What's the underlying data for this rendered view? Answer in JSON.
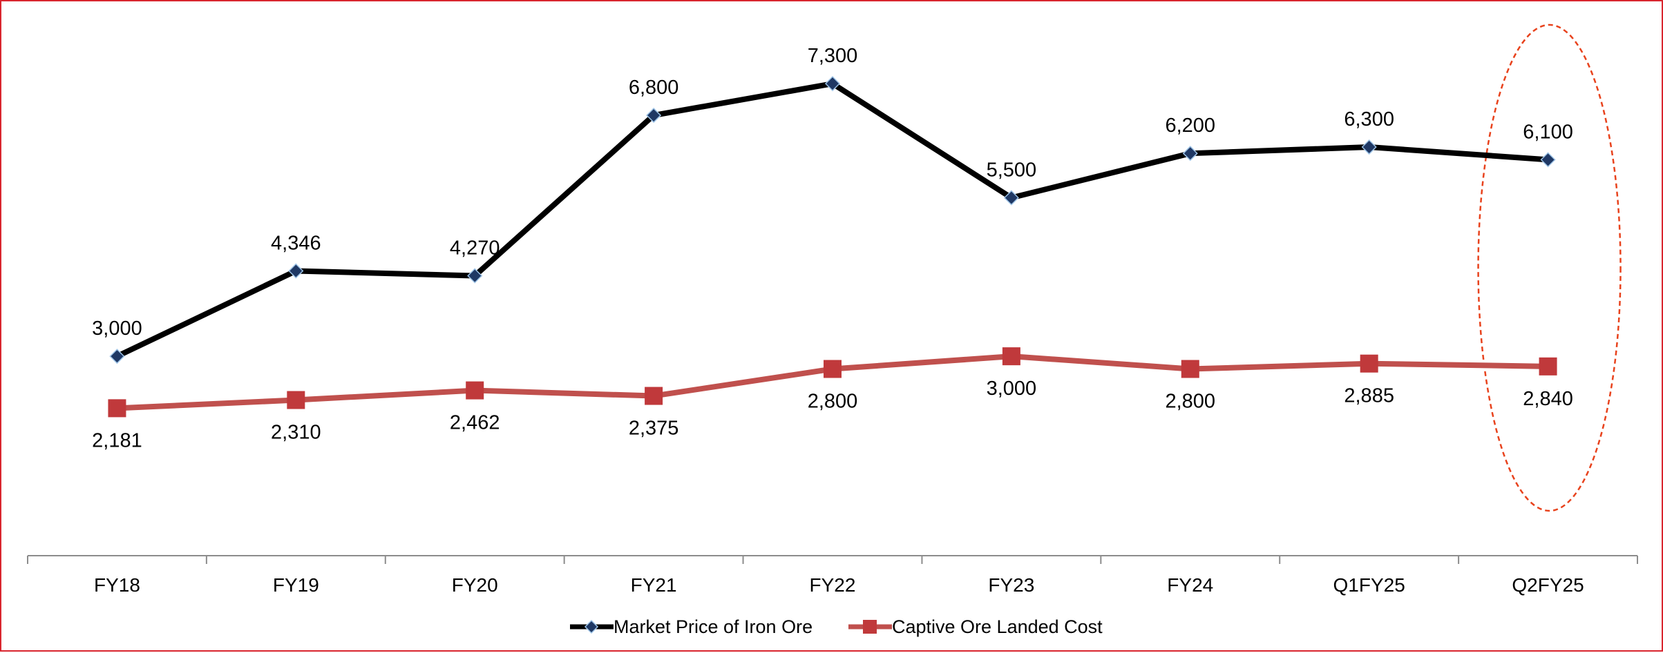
{
  "chart_data": {
    "type": "line",
    "categories": [
      "FY18",
      "FY19",
      "FY20",
      "FY21",
      "FY22",
      "FY23",
      "FY24",
      "Q1FY25",
      "Q2FY25"
    ],
    "series": [
      {
        "name": "Market Price of Iron Ore",
        "values": [
          3000,
          4346,
          4270,
          6800,
          7300,
          5500,
          6200,
          6300,
          6100
        ],
        "labels": [
          "3,000",
          "4,346",
          "4,270",
          "6,800",
          "7,300",
          "5,500",
          "6,200",
          "6,300",
          "6,100"
        ],
        "color": "#000000",
        "marker": "diamond",
        "marker_color": "#1f3864",
        "label_position": "above"
      },
      {
        "name": "Captive Ore Landed Cost",
        "values": [
          2181,
          2310,
          2462,
          2375,
          2800,
          3000,
          2800,
          2885,
          2840
        ],
        "labels": [
          "2,181",
          "2,310",
          "2,462",
          "2,375",
          "2,800",
          "3,000",
          "2,800",
          "2,885",
          "2,840"
        ],
        "color": "#c0504d",
        "marker": "square",
        "marker_color": "#c0393b",
        "label_position": "below"
      }
    ],
    "y_axis_visible": false,
    "gridlines": false,
    "legend_position": "bottom-center",
    "highlight": {
      "category": "Q2FY25",
      "shape": "dashed-ellipse",
      "color": "#e8421c"
    },
    "frame_color": "#d9252e"
  }
}
